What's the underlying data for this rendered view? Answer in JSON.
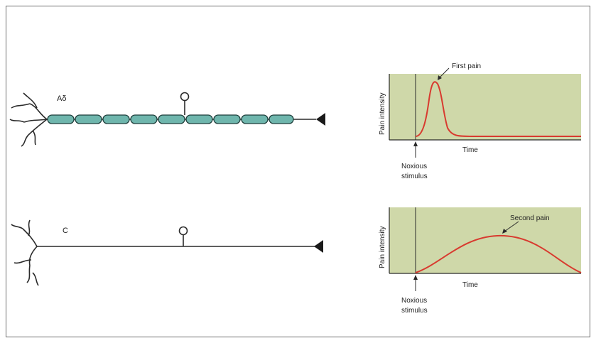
{
  "fibers": {
    "a_delta": {
      "label": "Aδ",
      "description": "myelinated fiber"
    },
    "c": {
      "label": "C",
      "description": "unmyelinated fiber"
    }
  },
  "graphs": {
    "top": {
      "y_label": "Pain intensity",
      "x_label": "Time",
      "peak_label": "First pain",
      "stimulus_label_line1": "Noxious",
      "stimulus_label_line2": "stimulus"
    },
    "bottom": {
      "y_label": "Pain intensity",
      "x_label": "Time",
      "peak_label": "Second pain",
      "stimulus_label_line1": "Noxious",
      "stimulus_label_line2": "stimulus"
    }
  },
  "colors": {
    "plot_bg": "#cfd8a9",
    "curve": "#d83a2f",
    "myelin_fill": "#6fb6ad",
    "myelin_stroke": "#1f3f3c",
    "line": "#2a2a2a"
  }
}
